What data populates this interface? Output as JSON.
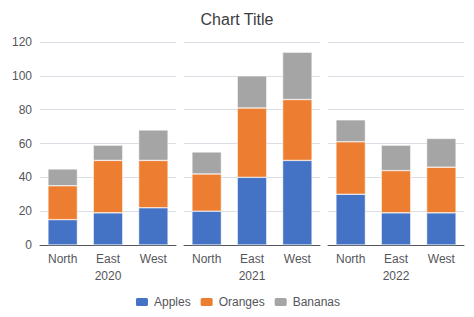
{
  "chart_data": [
    {
      "type": "bar",
      "stacked": true,
      "title": "Chart Title",
      "xlabel": "2020",
      "categories": [
        "North",
        "East",
        "West"
      ],
      "series": [
        {
          "name": "Apples",
          "color": "#4472c4",
          "values": [
            15,
            19,
            22
          ]
        },
        {
          "name": "Oranges",
          "color": "#ed7d31",
          "values": [
            20,
            31,
            28
          ]
        },
        {
          "name": "Bananas",
          "color": "#a5a5a5",
          "values": [
            10,
            9,
            18
          ]
        }
      ],
      "ylim": [
        0,
        120
      ],
      "yticks": [
        0,
        20,
        40,
        60,
        80,
        100,
        120
      ],
      "grid": true,
      "legend": "bottom"
    },
    {
      "type": "bar",
      "stacked": true,
      "xlabel": "2021",
      "categories": [
        "North",
        "East",
        "West"
      ],
      "series": [
        {
          "name": "Apples",
          "color": "#4472c4",
          "values": [
            20,
            40,
            50
          ]
        },
        {
          "name": "Oranges",
          "color": "#ed7d31",
          "values": [
            22,
            41,
            36
          ]
        },
        {
          "name": "Bananas",
          "color": "#a5a5a5",
          "values": [
            13,
            19,
            28
          ]
        }
      ],
      "ylim": [
        0,
        120
      ],
      "yticks": [
        0,
        20,
        40,
        60,
        80,
        100,
        120
      ],
      "grid": true,
      "tick_labels": "x"
    },
    {
      "type": "bar",
      "stacked": true,
      "xlabel": "2022",
      "categories": [
        "North",
        "East",
        "West"
      ],
      "series": [
        {
          "name": "Apples",
          "color": "#4472c4",
          "values": [
            30,
            19,
            19
          ]
        },
        {
          "name": "Oranges",
          "color": "#ed7d31",
          "values": [
            31,
            25,
            27
          ]
        },
        {
          "name": "Bananas",
          "color": "#a5a5a5",
          "values": [
            13,
            15,
            17
          ]
        }
      ],
      "ylim": [
        0,
        120
      ],
      "yticks": [
        0,
        20,
        40,
        60,
        80,
        100,
        120
      ],
      "grid": true,
      "tick_labels": "x"
    }
  ]
}
